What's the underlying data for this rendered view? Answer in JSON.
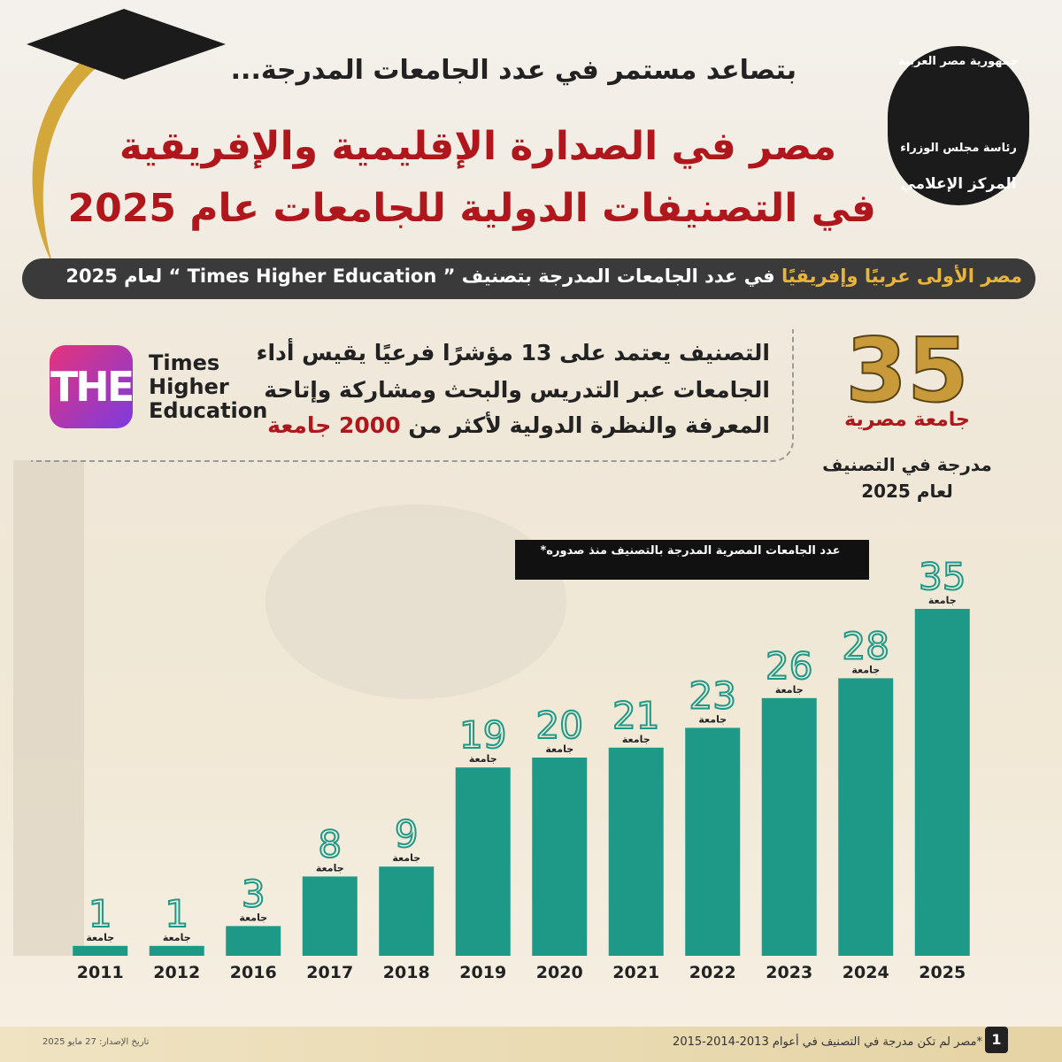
{
  "header": {
    "subtitle": "بتصاعد مستمر في عدد الجامعات المدرجة...",
    "title_lines": [
      "مصر في الصدارة الإقليمية والإفريقية",
      "في التصنيفات الدولية للجامعات عام 2025"
    ],
    "banner_highlight": "مصر الأولى عربيًا وإفريقيًا",
    "banner_rest": "في عدد الجامعات المدرجة بتصنيف ” Times Higher Education “ لعام 2025"
  },
  "logo": {
    "top": "جمهورية مصر العربية",
    "middle": "رئاسة مجلس الوزراء",
    "bottom": "المركز الإعلامي"
  },
  "the_logo": {
    "mark": "THE",
    "lines": [
      "Times",
      "Higher",
      "Education"
    ]
  },
  "description": {
    "lines": [
      "التصنيف يعتمد على 13 مؤشرًا فرعيًا يقيس أداء",
      "الجامعات عبر التدريس والبحث ومشاركة وإتاحة",
      "المعرفة والنظرة الدولية لأكثر من"
    ],
    "highlight": "2000 جامعة"
  },
  "highlight": {
    "number": 35,
    "label": "جامعة مصرية",
    "caption_lines": [
      "مدرجة في التصنيف",
      "لعام 2025"
    ]
  },
  "chart_data": {
    "type": "bar",
    "title": "عدد الجامعات المصرية المدرجة بالتصنيف منذ صدوره*",
    "categories": [
      "2011",
      "2012",
      "2016",
      "2017",
      "2018",
      "2019",
      "2020",
      "2021",
      "2022",
      "2023",
      "2024",
      "2025"
    ],
    "values": [
      1,
      1,
      3,
      8,
      9,
      19,
      20,
      21,
      23,
      26,
      28,
      35
    ],
    "unit_label": "جامعة",
    "color": "#1e9988"
  },
  "footer": {
    "note": "*مصر لم تكن مدرجة في التصنيف في أعوام 2013-2014-2015",
    "date": "تاريخ الإصدار: 27 مايو 2025",
    "page": "1"
  }
}
